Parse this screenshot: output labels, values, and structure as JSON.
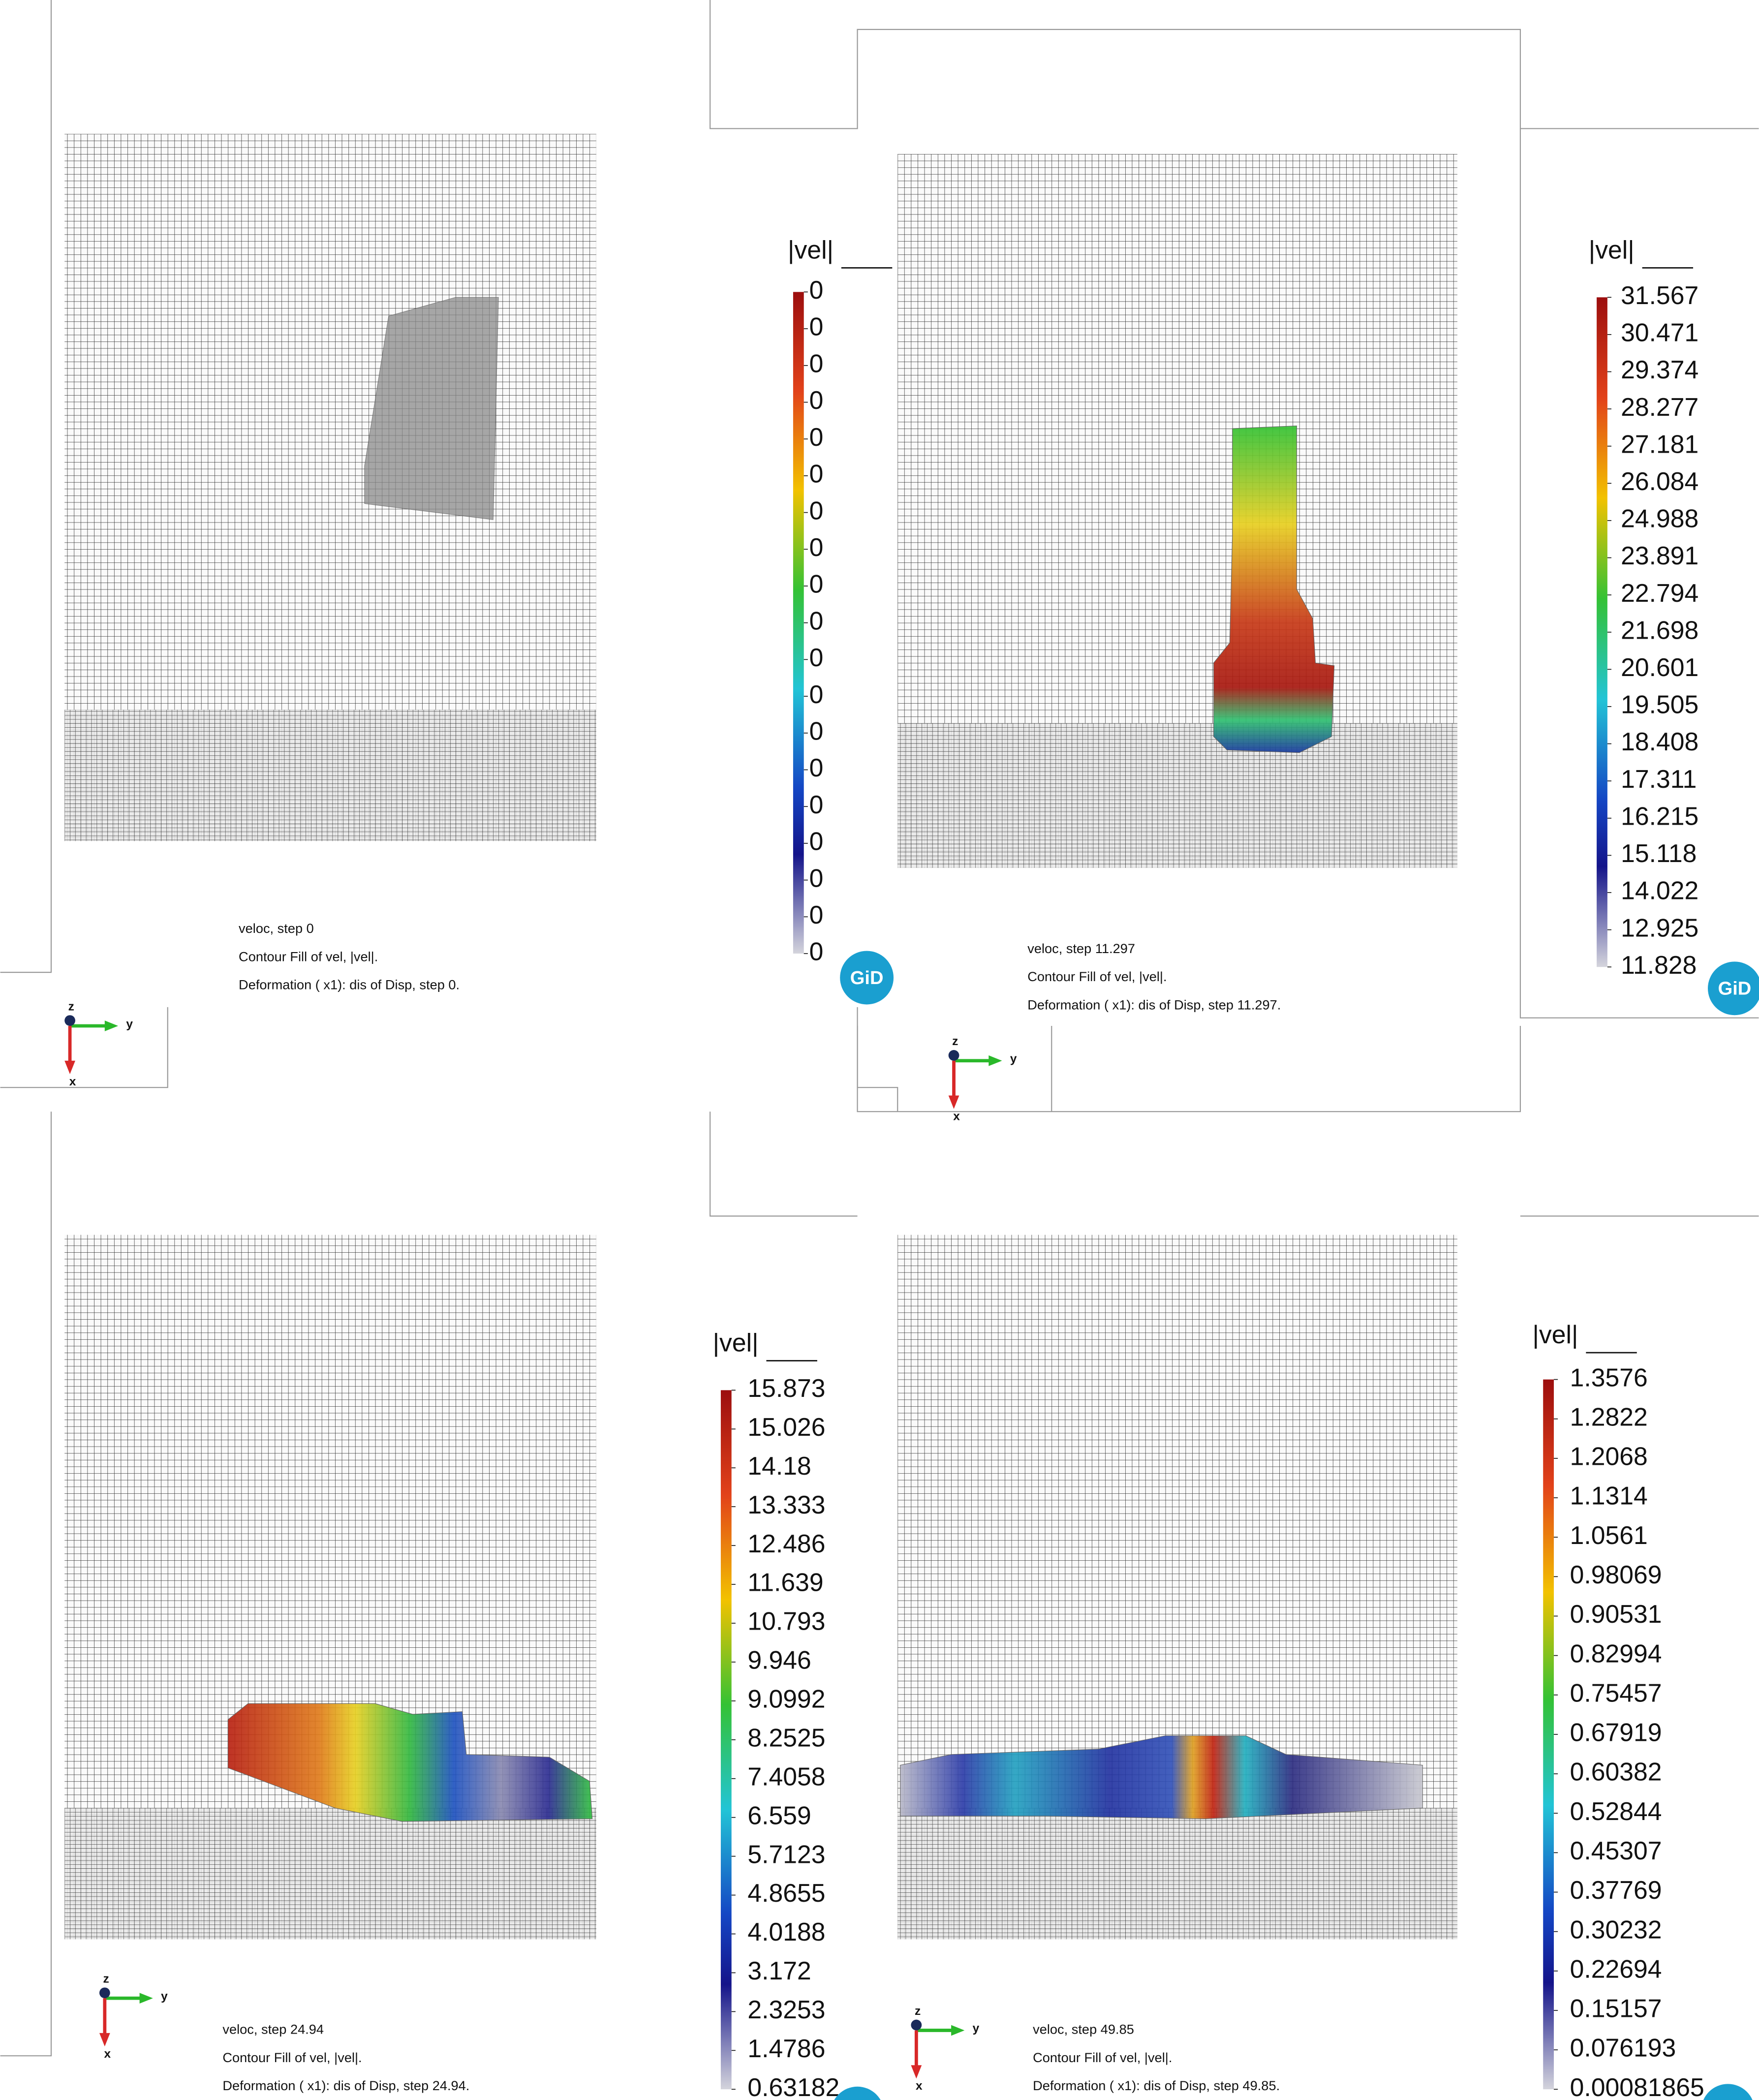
{
  "panels": [
    {
      "legend_title": "|vel|",
      "legend_values": [
        "0",
        "0",
        "0",
        "0",
        "0",
        "0",
        "0",
        "0",
        "0",
        "0",
        "0",
        "0",
        "0",
        "0",
        "0",
        "0",
        "0",
        "0",
        "0"
      ],
      "caption": [
        "veloc, step 0",
        "Contour Fill of vel, |vel|.",
        "Deformation ( x1): dis of Disp, step 0."
      ],
      "axes": [
        "z",
        "y",
        "x"
      ],
      "logo": "GiD"
    },
    {
      "legend_title": "|vel|",
      "legend_values": [
        "31.567",
        "30.471",
        "29.374",
        "28.277",
        "27.181",
        "26.084",
        "24.988",
        "23.891",
        "22.794",
        "21.698",
        "20.601",
        "19.505",
        "18.408",
        "17.311",
        "16.215",
        "15.118",
        "14.022",
        "12.925",
        "11.828"
      ],
      "caption": [
        "veloc, step 11.297",
        "Contour Fill of vel, |vel|.",
        "Deformation ( x1): dis of Disp, step 11.297."
      ],
      "axes": [
        "z",
        "y",
        "x"
      ],
      "logo": "GiD"
    },
    {
      "legend_title": "|vel|",
      "legend_values": [
        "15.873",
        "15.026",
        "14.18",
        "13.333",
        "12.486",
        "11.639",
        "10.793",
        "9.946",
        "9.0992",
        "8.2525",
        "7.4058",
        "6.559",
        "5.7123",
        "4.8655",
        "4.0188",
        "3.172",
        "2.3253",
        "1.4786",
        "0.63182"
      ],
      "caption": [
        "veloc, step 24.94",
        "Contour Fill of vel, |vel|.",
        "Deformation ( x1): dis of Disp, step 24.94."
      ],
      "axes": [
        "z",
        "y",
        "x"
      ],
      "logo": "GiD"
    },
    {
      "legend_title": "|vel|",
      "legend_values": [
        "1.3576",
        "1.2822",
        "1.2068",
        "1.1314",
        "1.0561",
        "0.98069",
        "0.90531",
        "0.82994",
        "0.75457",
        "0.67919",
        "0.60382",
        "0.52844",
        "0.45307",
        "0.37769",
        "0.30232",
        "0.22694",
        "0.15157",
        "0.076193",
        "0.00081865"
      ],
      "caption": [
        "veloc, step 49.85",
        "Contour Fill of vel, |vel|.",
        "Deformation ( x1): dis of Disp, step 49.85."
      ],
      "axes": [
        "z",
        "y",
        "x"
      ],
      "logo": "GiD"
    }
  ]
}
